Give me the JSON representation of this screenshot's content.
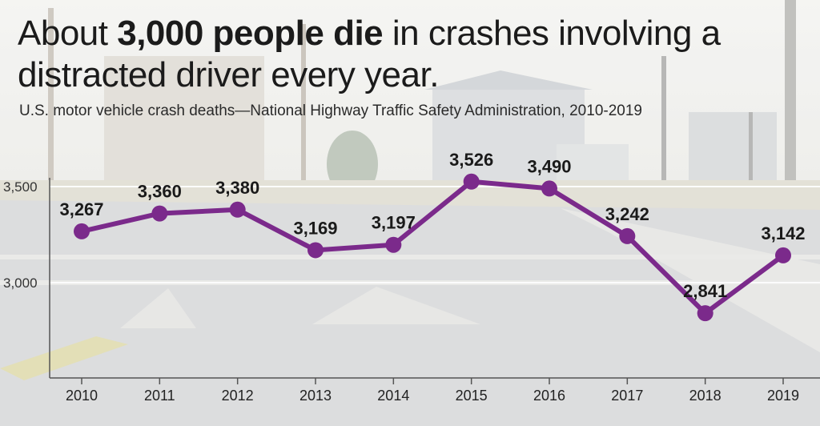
{
  "headline": {
    "pre": "About ",
    "bold": "3,000 people die",
    "post": " in crashes involving a distracted driver every year."
  },
  "subtitle": "U.S. motor vehicle crash deaths—National Highway Traffic Safety Administration, 2010-2019",
  "colors": {
    "line": "#7b2a8b",
    "gridline": "#ffffff",
    "axis": "#555555",
    "text": "#1b1b1b"
  },
  "chart_data": {
    "type": "line",
    "title": "About 3,000 people die in crashes involving a distracted driver every year.",
    "subtitle": "U.S. motor vehicle crash deaths—National Highway Traffic Safety Administration, 2010-2019",
    "x": [
      "2010",
      "2011",
      "2012",
      "2013",
      "2014",
      "2015",
      "2016",
      "2017",
      "2018",
      "2019"
    ],
    "series": [
      {
        "values": [
          3267,
          3360,
          3380,
          3169,
          3197,
          3526,
          3490,
          3242,
          2841,
          3142
        ],
        "labels": [
          "3,267",
          "3,360",
          "3,380",
          "3,169",
          "3,197",
          "3,526",
          "3,490",
          "3,242",
          "2,841",
          "3,142"
        ]
      }
    ],
    "yticks": [
      {
        "value": 3000,
        "label": "3,000"
      },
      {
        "value": 3500,
        "label": "3,500"
      }
    ],
    "ylim": [
      2620,
      3560
    ],
    "grid": true,
    "legend": "none"
  }
}
